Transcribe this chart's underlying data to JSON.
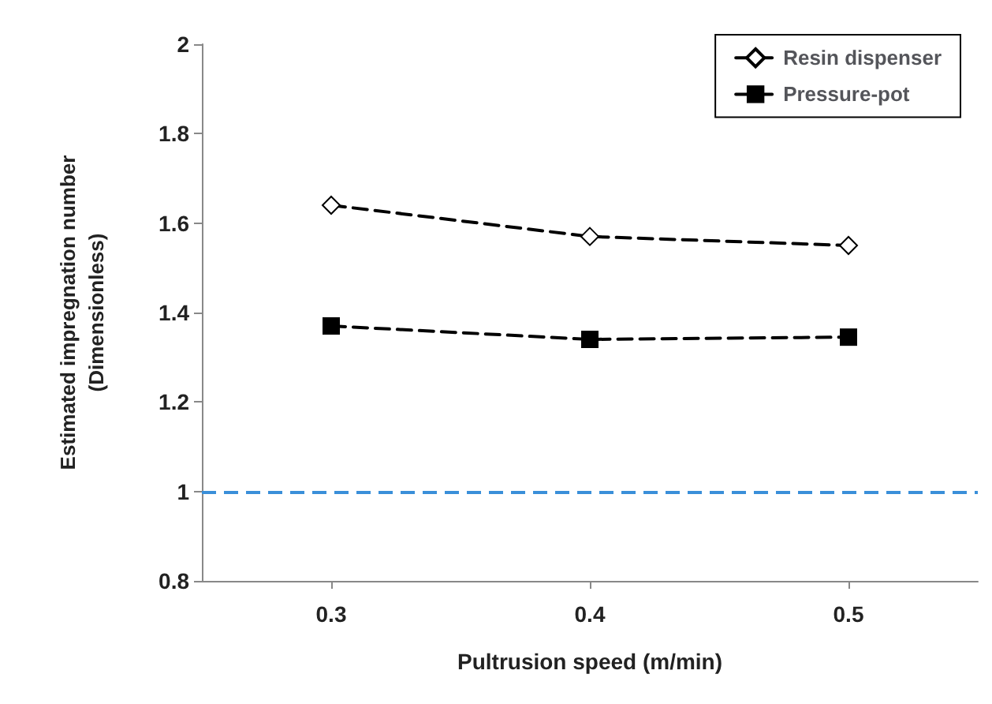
{
  "chart_data": {
    "type": "line",
    "xlabel": "Pultrusion speed (m/min)",
    "ylabel": "Estimated impregnation number\n(Dimensionless)",
    "x": [
      0.3,
      0.4,
      0.5
    ],
    "series": [
      {
        "name": "Resin dispenser",
        "color": "#000000",
        "marker": "diamond",
        "values": [
          1.64,
          1.57,
          1.55
        ]
      },
      {
        "name": "Pressure-pot",
        "color": "#000000",
        "marker": "square",
        "values": [
          1.37,
          1.34,
          1.345
        ]
      }
    ],
    "xlim": [
      0.25,
      0.55
    ],
    "xticks": [
      0.3,
      0.4,
      0.5
    ],
    "ylim": [
      0.8,
      2
    ],
    "yticks": [
      0.8,
      1,
      1.2,
      1.4,
      1.6,
      1.8,
      2
    ],
    "ref_lines": [
      {
        "axis": "y",
        "value": 1,
        "color": "#3a8fd9",
        "line_style": "dashed"
      }
    ],
    "line_style": "dashed",
    "grid": false,
    "legend": "top right"
  }
}
